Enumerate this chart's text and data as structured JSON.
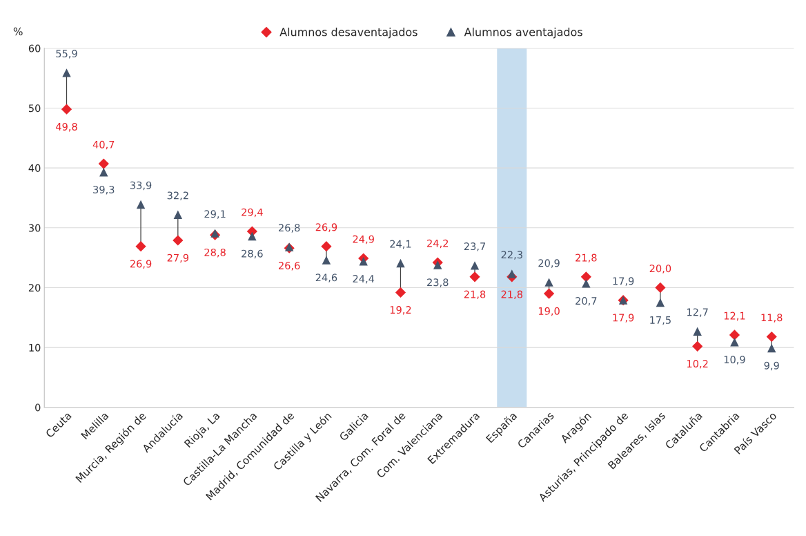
{
  "chart_data": {
    "type": "scatter",
    "ylabel": "%",
    "categories": [
      "Ceuta",
      "Melilla",
      "Murcia, Región de",
      "Andalucía",
      "Rioja, La",
      "Castilla-La Mancha",
      "Madrid, Comunidad de",
      "Castilla y León",
      "Galicia",
      "Navarra, Com. Foral de",
      "Com. Valenciana",
      "Extremadura",
      "España",
      "Canarias",
      "Aragón",
      "Asturias, Principado de",
      "Baleares, Islas",
      "Cataluña",
      "Cantabria",
      "País Vasco"
    ],
    "series": [
      {
        "name": "Alumnos desaventajados",
        "color": "#e8232a",
        "marker": "diamond",
        "values": [
          49.8,
          40.7,
          26.9,
          27.9,
          28.8,
          29.4,
          26.6,
          26.9,
          24.9,
          19.2,
          24.2,
          21.8,
          21.8,
          19.0,
          21.8,
          17.9,
          20.0,
          10.2,
          12.1,
          11.8
        ],
        "value_labels": [
          "49,8",
          "40,7",
          "26,9",
          "27,9",
          "28,8",
          "29,4",
          "26,6",
          "26,9",
          "24,9",
          "19,2",
          "24,2",
          "21,8",
          "21,8",
          "19,0",
          "21,8",
          "17,9",
          "20,0",
          "10,2",
          "12,1",
          "11,8"
        ]
      },
      {
        "name": "Alumnos aventajados",
        "color": "#44546a",
        "marker": "triangle",
        "values": [
          55.9,
          39.3,
          33.9,
          32.2,
          29.1,
          28.6,
          26.8,
          24.6,
          24.4,
          24.1,
          23.8,
          23.7,
          22.3,
          20.9,
          20.7,
          17.9,
          17.5,
          12.7,
          10.9,
          9.9
        ],
        "value_labels": [
          "55,9",
          "39,3",
          "33,9",
          "32,2",
          "29,1",
          "28,6",
          "26,8",
          "24,6",
          "24,4",
          "24,1",
          "23,8",
          "23,7",
          "22,3",
          "20,9",
          "20,7",
          "17,9",
          "17,5",
          "12,7",
          "10,9",
          "9,9"
        ]
      }
    ],
    "bands": [
      {
        "axis": "x",
        "from": "España",
        "to": "España",
        "color": "#c6ddef"
      }
    ],
    "ylim": [
      0,
      60
    ],
    "yticks": [
      0,
      10,
      20,
      30,
      40,
      50,
      60
    ],
    "grid": "y",
    "legend": "top"
  }
}
